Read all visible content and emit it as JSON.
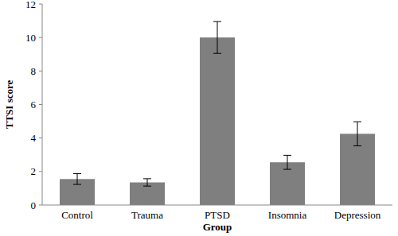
{
  "chart_data": {
    "type": "bar",
    "x_label": "Group",
    "y_label": "TTSI score",
    "categories": [
      "Control",
      "Trauma",
      "PTSD",
      "Insomnia",
      "Depression"
    ],
    "values": [
      1.55,
      1.35,
      10.0,
      2.55,
      4.25
    ],
    "errors": [
      0.32,
      0.22,
      0.95,
      0.42,
      0.72
    ],
    "color": "#7f7f7f",
    "ylim": [
      0,
      12
    ],
    "yticks": [
      0,
      2,
      4,
      6,
      8,
      10,
      12
    ],
    "grid": false
  }
}
